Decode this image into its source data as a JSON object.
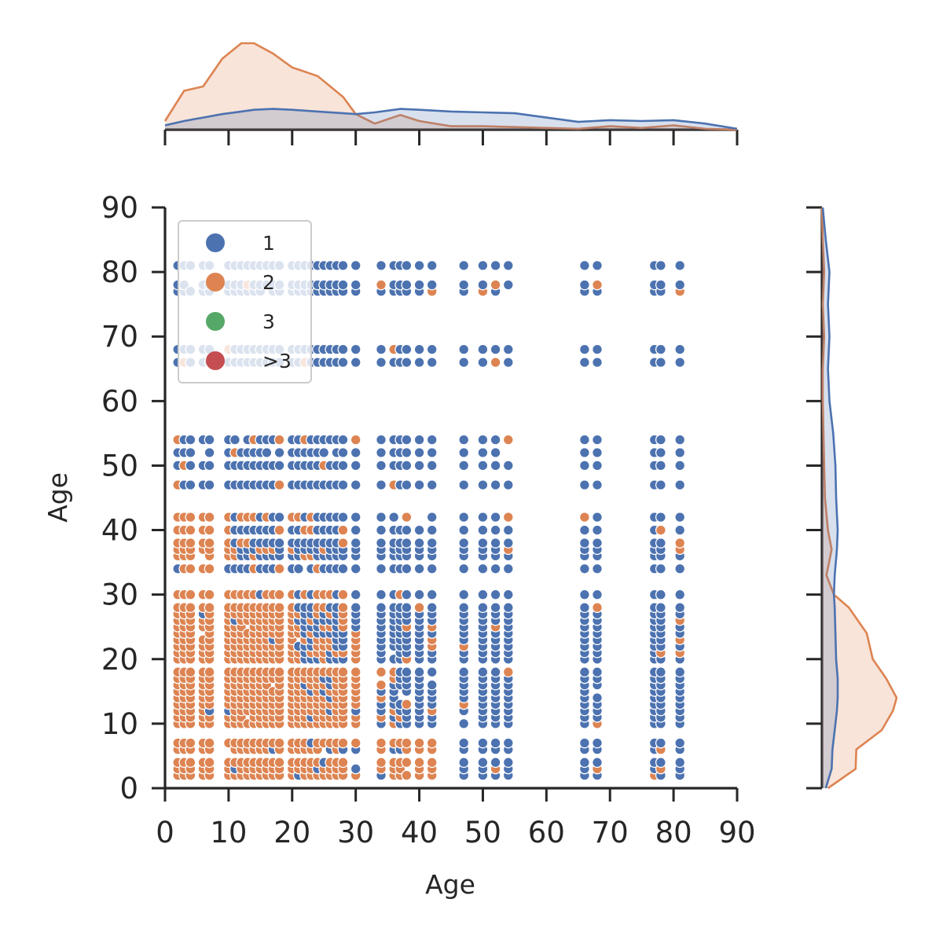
{
  "chart_data": {
    "type": "scatter",
    "title": "",
    "xlabel": "Age",
    "ylabel": "Age",
    "xlim": [
      0,
      90
    ],
    "ylim": [
      0,
      90
    ],
    "xticks": [
      0,
      10,
      20,
      30,
      40,
      50,
      60,
      70,
      80,
      90
    ],
    "yticks": [
      0,
      10,
      20,
      30,
      40,
      50,
      60,
      70,
      80,
      90
    ],
    "grid": false,
    "legend": {
      "placement": "upper-left",
      "entries": [
        {
          "label": "1",
          "color": "#4c72b0"
        },
        {
          "label": "2",
          "color": "#dd8452"
        },
        {
          "label": "3",
          "color": "#55a868"
        },
        {
          "label": ">3",
          "color": "#c44e52"
        }
      ]
    },
    "x_age_values": [
      2,
      3,
      4,
      6,
      7,
      10,
      11,
      12,
      13,
      14,
      15,
      16,
      17,
      18,
      20,
      21,
      22,
      23,
      24,
      25,
      26,
      27,
      28,
      30,
      34,
      36,
      37,
      38,
      40,
      42,
      47,
      50,
      52,
      54,
      66,
      68,
      77,
      78,
      81
    ],
    "y_age_values": [
      2,
      3,
      4,
      6,
      7,
      10,
      11,
      12,
      13,
      14,
      15,
      16,
      17,
      18,
      20,
      21,
      22,
      23,
      24,
      25,
      26,
      27,
      28,
      30,
      34,
      36,
      37,
      38,
      40,
      42,
      47,
      50,
      52,
      54,
      66,
      68,
      77,
      78,
      81
    ],
    "marginal_kde_x": {
      "x": [
        0,
        3,
        6,
        9,
        12,
        14,
        17,
        20,
        24,
        28,
        30,
        33,
        37,
        40,
        45,
        50,
        55,
        60,
        65,
        70,
        75,
        80,
        85,
        90
      ],
      "series": [
        {
          "name": "1",
          "color": "#4c72b0",
          "values": [
            0.05,
            0.1,
            0.14,
            0.18,
            0.21,
            0.23,
            0.24,
            0.23,
            0.21,
            0.19,
            0.18,
            0.2,
            0.24,
            0.23,
            0.21,
            0.2,
            0.19,
            0.14,
            0.09,
            0.11,
            0.1,
            0.11,
            0.07,
            0.01
          ]
        },
        {
          "name": "2",
          "color": "#dd8452",
          "values": [
            0.1,
            0.45,
            0.5,
            0.82,
            1.0,
            1.0,
            0.88,
            0.72,
            0.62,
            0.38,
            0.18,
            0.07,
            0.17,
            0.1,
            0.04,
            0.04,
            0.03,
            0.02,
            0.01,
            0.04,
            0.02,
            0.05,
            0.01,
            0.0
          ]
        }
      ]
    },
    "marginal_kde_y": {
      "y": [
        0,
        3,
        6,
        9,
        12,
        14,
        17,
        20,
        24,
        28,
        30,
        33,
        37,
        40,
        45,
        50,
        55,
        60,
        65,
        70,
        75,
        80,
        85,
        90
      ],
      "series": [
        {
          "name": "1",
          "color": "#4c72b0",
          "values": [
            0.05,
            0.13,
            0.14,
            0.17,
            0.2,
            0.21,
            0.21,
            0.19,
            0.18,
            0.17,
            0.16,
            0.17,
            0.2,
            0.21,
            0.19,
            0.18,
            0.15,
            0.1,
            0.08,
            0.1,
            0.08,
            0.1,
            0.05,
            0.01
          ]
        },
        {
          "name": "2",
          "color": "#dd8452",
          "values": [
            0.08,
            0.45,
            0.46,
            0.8,
            0.95,
            1.0,
            0.86,
            0.68,
            0.6,
            0.36,
            0.16,
            0.06,
            0.13,
            0.08,
            0.04,
            0.03,
            0.02,
            0.01,
            0.01,
            0.03,
            0.01,
            0.03,
            0.01,
            0.0
          ]
        }
      ]
    }
  }
}
